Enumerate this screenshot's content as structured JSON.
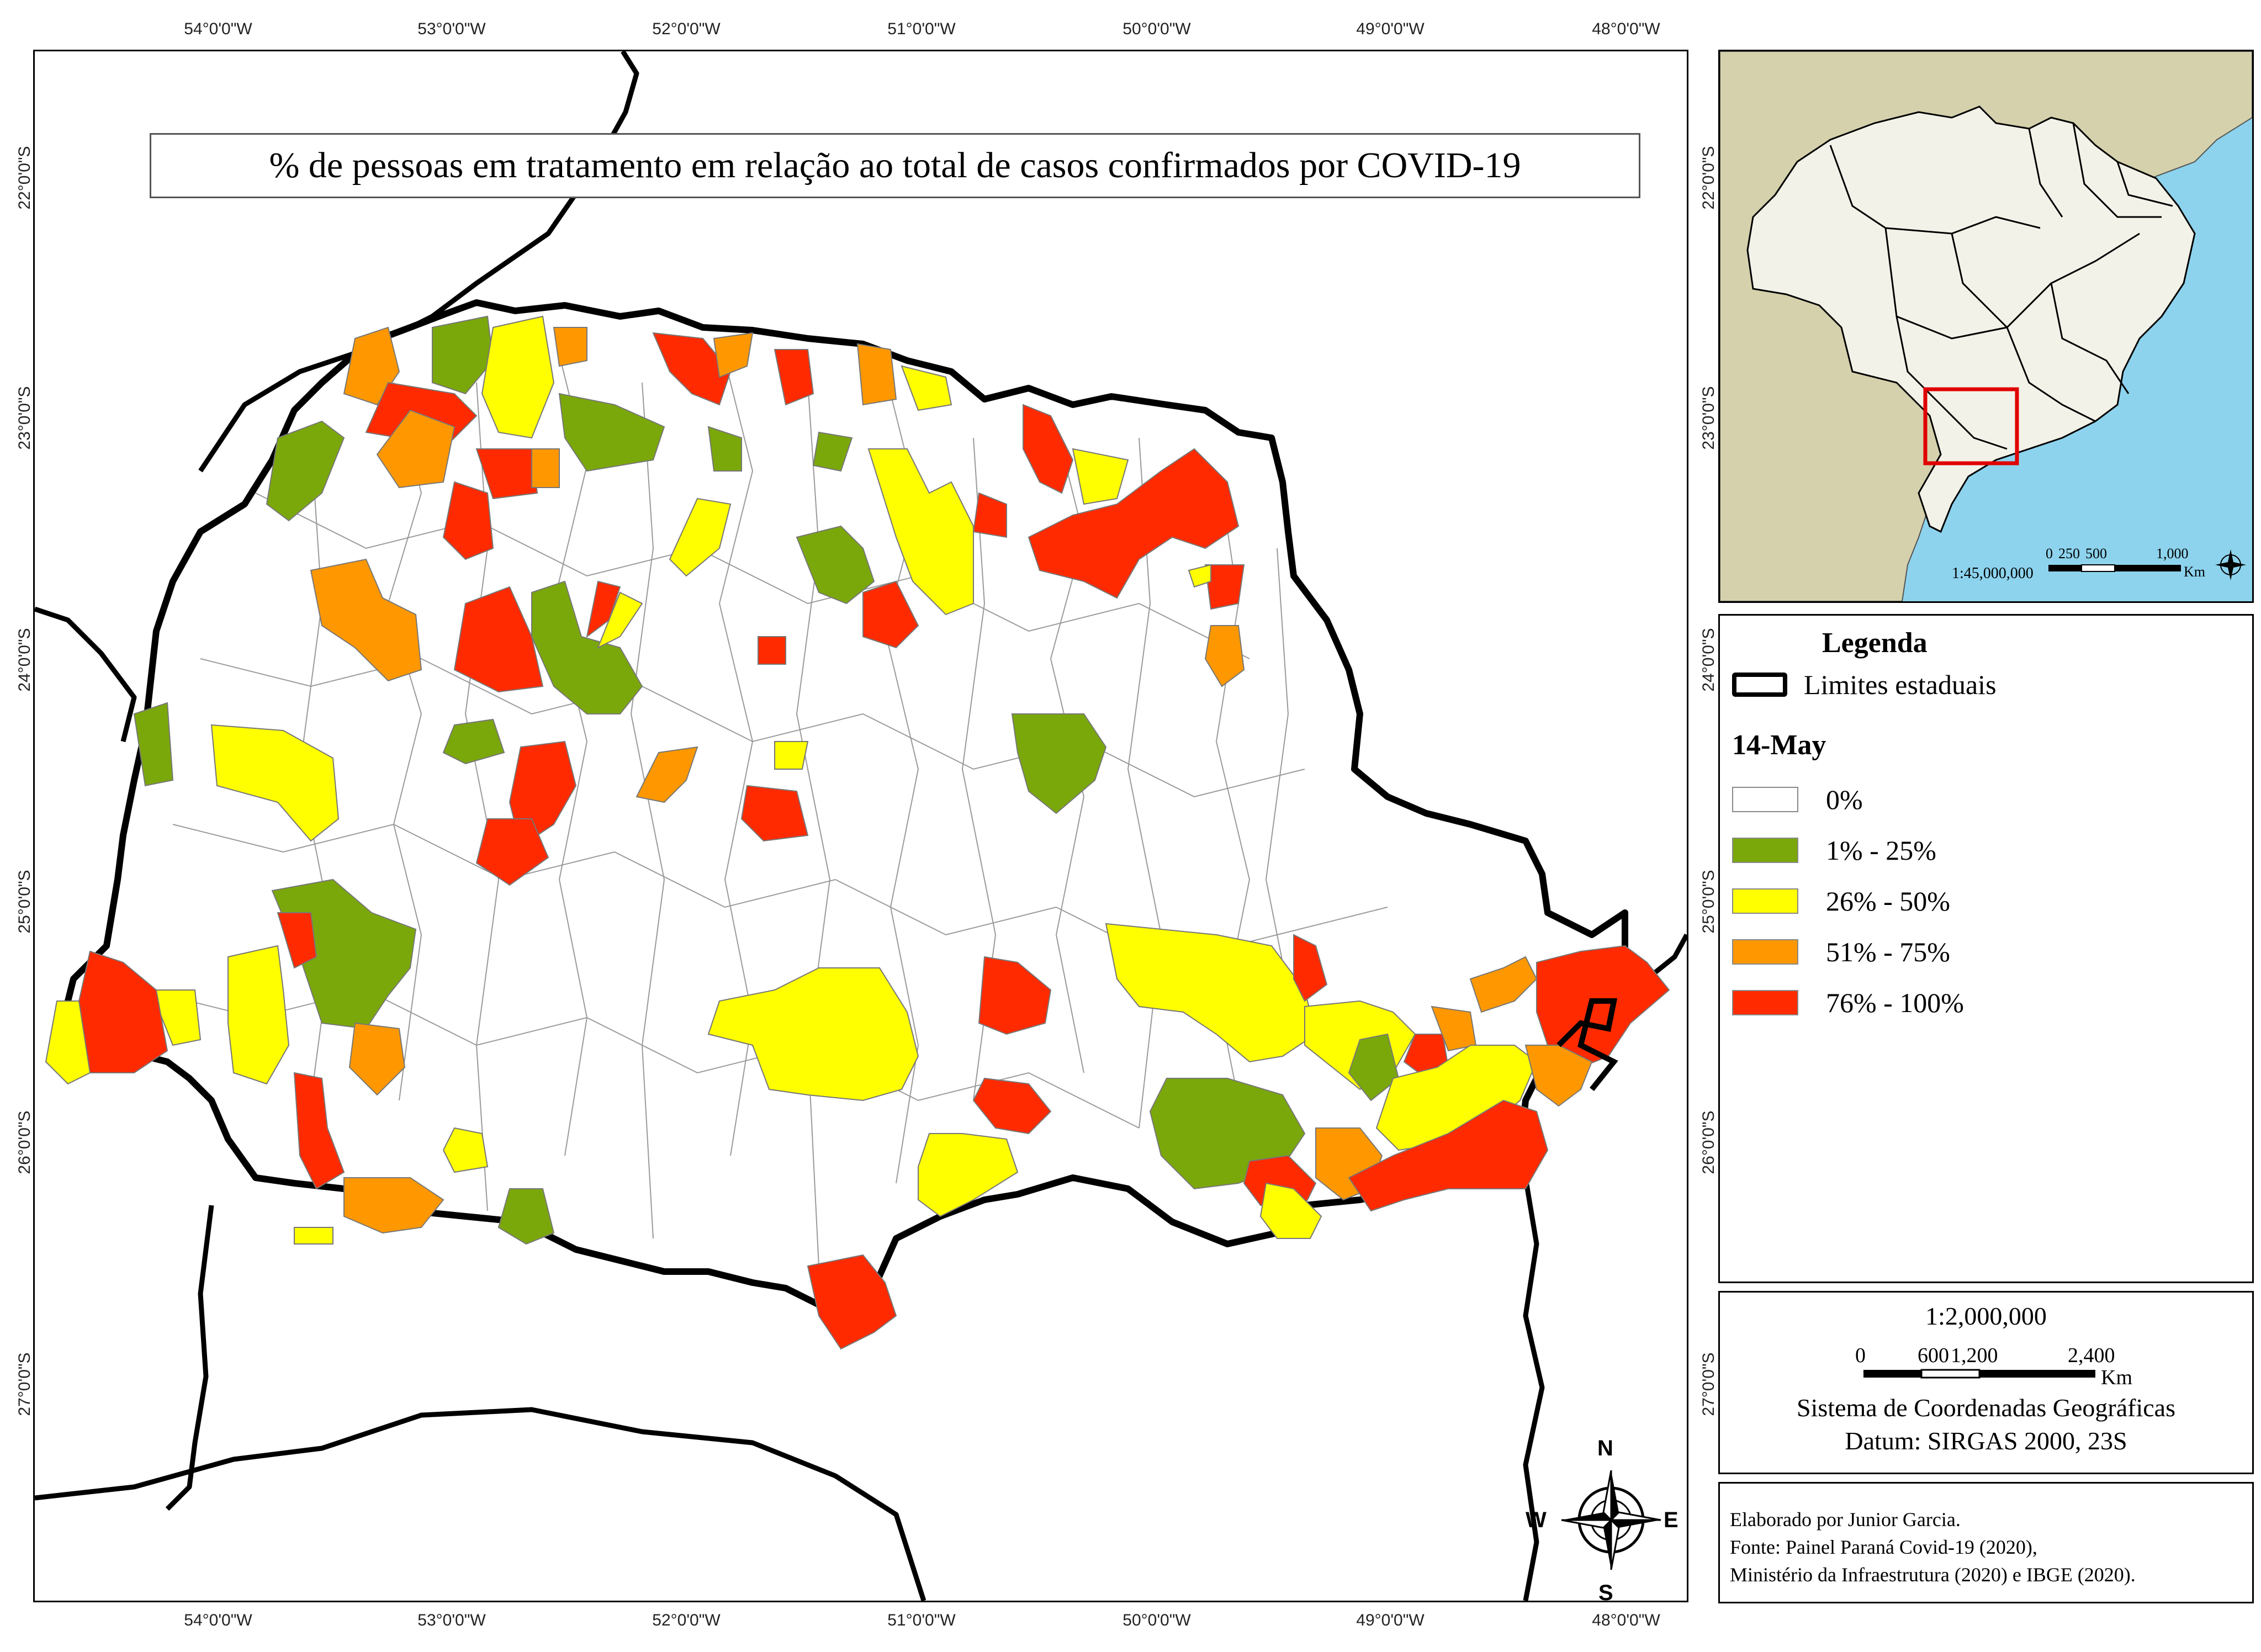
{
  "title": "% de pessoas em tratamento em relação ao total de casos confirmados por COVID-19",
  "graticule": {
    "longitudes": [
      "54°0'0\"W",
      "53°0'0\"W",
      "52°0'0\"W",
      "51°0'0\"W",
      "50°0'0\"W",
      "49°0'0\"W",
      "48°0'0\"W"
    ],
    "latitudes": [
      "22°0'0\"S",
      "23°0'0\"S",
      "24°0'0\"S",
      "25°0'0\"S",
      "26°0'0\"S",
      "27°0'0\"S"
    ]
  },
  "legend": {
    "title": "Legenda",
    "state_limits": "Limites estaduais",
    "date": "14-May",
    "classes": [
      {
        "label": "0%",
        "color": "#ffffff"
      },
      {
        "label": "1% - 25%",
        "color": "#7aa80a"
      },
      {
        "label": "26% - 50%",
        "color": "#ffff00"
      },
      {
        "label": "51% - 75%",
        "color": "#ff9800"
      },
      {
        "label": "76% - 100%",
        "color": "#ff2a00"
      }
    ]
  },
  "scale": {
    "ratio": "1:2,000,000",
    "ticks": [
      "0",
      "600",
      "1,200",
      "2,400"
    ],
    "unit": "Km",
    "crs": "Sistema de Coordenadas Geográficas",
    "datum": "Datum: SIRGAS 2000, 23S"
  },
  "inset": {
    "ratio": "1:45,000,000",
    "ticks": [
      "0",
      "250",
      "500",
      "1,000"
    ],
    "unit": "Km",
    "ocean_color": "#8dd3ed",
    "land_color": "#d4d1ac",
    "brazil_color": "#f3f2e8",
    "highlight_color": "#e00000"
  },
  "north_arrow": {
    "n": "N",
    "s": "S",
    "e": "E",
    "w": "W"
  },
  "credits": [
    "Elaborado por Junior Garcia.",
    "Fonte: Painel Paraná Covid-19 (2020),",
    "Ministério da Infraestrutura (2020) e IBGE (2020)."
  ]
}
